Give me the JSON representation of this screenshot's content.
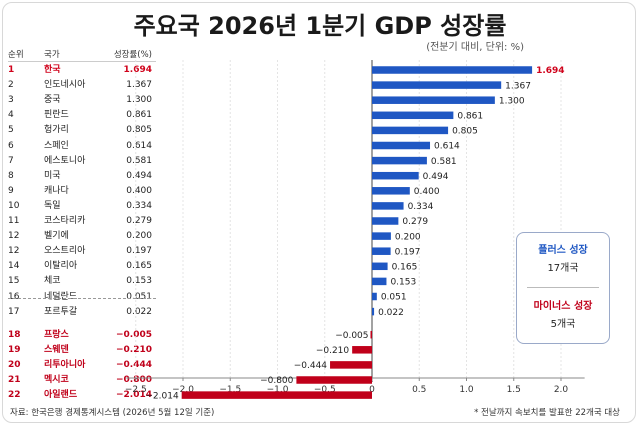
{
  "title": "주요국 2026년 1분기 GDP 성장률",
  "unit_note": "(전분기 대비, 단위: %)",
  "table_headers": {
    "rank": "순위",
    "country": "국가",
    "value": "성장률(%)"
  },
  "source": "자료: 한국은행 경제통계시스템 (2026년 5월 12일 기준)",
  "footnote": "* 전날까지 속보치를 발표한 22개국 대상",
  "legend": {
    "plus_label": "플러스 성장",
    "plus_count": "17개국",
    "minus_label": "마이너스 성장",
    "minus_count": "5개국"
  },
  "colors": {
    "positive": "#1f57c3",
    "negative": "#c0001a",
    "highlight": "#d0021b"
  },
  "chart_data": {
    "type": "bar",
    "orientation": "horizontal",
    "title": "주요국 2026년 1분기 GDP 성장률",
    "xlim": [
      -2.6,
      2.25
    ],
    "xticks": [
      -2.5,
      -2.0,
      -1.5,
      -1.0,
      -0.5,
      0,
      0.5,
      1.0,
      1.5,
      2.0
    ],
    "xtick_labels": [
      "−2.5",
      "−2.0",
      "−1.5",
      "−1.0",
      "−0.5",
      "0",
      "0.5",
      "1.0",
      "1.5",
      "2.0"
    ],
    "grid": "vertical-dashed",
    "rows": [
      {
        "rank": "1",
        "country": "한국",
        "value": 1.694,
        "label": "1.694"
      },
      {
        "rank": "2",
        "country": "인도네시아",
        "value": 1.367,
        "label": "1.367"
      },
      {
        "rank": "3",
        "country": "중국",
        "value": 1.3,
        "label": "1.300"
      },
      {
        "rank": "4",
        "country": "핀란드",
        "value": 0.861,
        "label": "0.861"
      },
      {
        "rank": "5",
        "country": "헝가리",
        "value": 0.805,
        "label": "0.805"
      },
      {
        "rank": "6",
        "country": "스페인",
        "value": 0.614,
        "label": "0.614"
      },
      {
        "rank": "7",
        "country": "에스토니아",
        "value": 0.581,
        "label": "0.581"
      },
      {
        "rank": "8",
        "country": "미국",
        "value": 0.494,
        "label": "0.494"
      },
      {
        "rank": "9",
        "country": "캐나다",
        "value": 0.4,
        "label": "0.400"
      },
      {
        "rank": "10",
        "country": "독일",
        "value": 0.334,
        "label": "0.334"
      },
      {
        "rank": "11",
        "country": "코스타리카",
        "value": 0.279,
        "label": "0.279"
      },
      {
        "rank": "12",
        "country": "벨기에",
        "value": 0.2,
        "label": "0.200"
      },
      {
        "rank": "12",
        "country": "오스트리아",
        "value": 0.197,
        "label": "0.197"
      },
      {
        "rank": "14",
        "country": "이탈리아",
        "value": 0.165,
        "label": "0.165"
      },
      {
        "rank": "15",
        "country": "체코",
        "value": 0.153,
        "label": "0.153"
      },
      {
        "rank": "16",
        "country": "네덜란드",
        "value": 0.051,
        "label": "0.051"
      },
      {
        "rank": "17",
        "country": "포르투갈",
        "value": 0.022,
        "label": "0.022"
      },
      {
        "rank": "18",
        "country": "프랑스",
        "value": -0.005,
        "label": "−0.005"
      },
      {
        "rank": "19",
        "country": "스웨덴",
        "value": -0.21,
        "label": "−0.210"
      },
      {
        "rank": "20",
        "country": "리투아니아",
        "value": -0.444,
        "label": "−0.444"
      },
      {
        "rank": "21",
        "country": "멕시코",
        "value": -0.8,
        "label": "−0.800"
      },
      {
        "rank": "22",
        "country": "아일랜드",
        "value": -2.014,
        "label": "−2.014"
      }
    ]
  }
}
